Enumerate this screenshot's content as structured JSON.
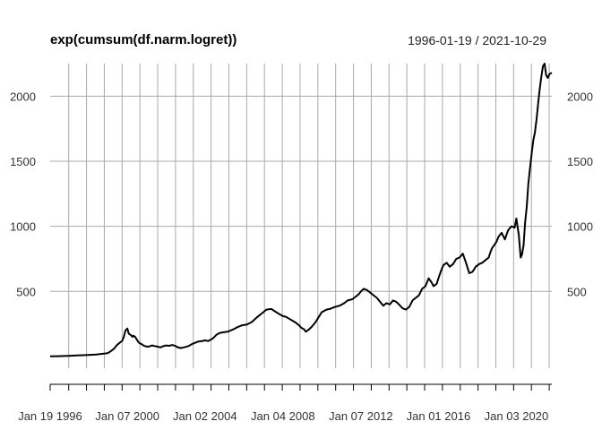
{
  "chart_data": {
    "type": "line",
    "title": "exp(cumsum(df.narm.logret))",
    "date_range_label": "1996-01-19 / 2021-10-29",
    "xlabel": "",
    "ylabel": "",
    "x_start": "1996-01-19",
    "x_end": "2021-10-29",
    "xlim": [
      "1996-01-19",
      "2021-10-29"
    ],
    "ylim": [
      -90,
      2250
    ],
    "y_ticks": [
      500,
      1000,
      1500,
      2000
    ],
    "x_tick_labels": [
      {
        "date": "1996-01-19",
        "label": "Jan 19 1996"
      },
      {
        "date": "2000-01-07",
        "label": "Jan 07 2000"
      },
      {
        "date": "2004-01-02",
        "label": "Jan 02 2004"
      },
      {
        "date": "2008-01-04",
        "label": "Jan 04 2008"
      },
      {
        "date": "2012-01-07",
        "label": "Jan 07 2012"
      },
      {
        "date": "2016-01-01",
        "label": "Jan 01 2016"
      },
      {
        "date": "2020-01-03",
        "label": "Jan 03 2020"
      }
    ],
    "grid": true,
    "line_color": "#000000",
    "grid_color": "#a9a9a9",
    "series": [
      {
        "x": [
          "1996-01-19",
          "1996-06-01",
          "1997-01-01",
          "1997-06-01",
          "1998-01-01",
          "1998-06-01",
          "1999-01-01",
          "1999-03-01",
          "1999-05-01",
          "1999-07-01",
          "1999-09-01",
          "1999-10-01",
          "1999-11-01",
          "1999-12-01",
          "2000-01-07",
          "2000-02-01",
          "2000-03-10",
          "2000-04-15",
          "2000-05-01",
          "2000-06-01",
          "2000-07-01",
          "2000-08-01",
          "2000-09-01",
          "2000-10-01",
          "2000-11-01",
          "2000-12-01",
          "2001-01-15",
          "2001-03-01",
          "2001-04-15",
          "2001-06-01",
          "2001-08-01",
          "2001-09-21",
          "2001-11-01",
          "2002-01-01",
          "2002-03-01",
          "2002-05-01",
          "2002-07-01",
          "2002-08-01",
          "2002-10-01",
          "2002-12-01",
          "2003-03-01",
          "2003-05-01",
          "2003-07-01",
          "2003-09-01",
          "2003-12-01",
          "2004-01-02",
          "2004-03-01",
          "2004-06-01",
          "2004-08-01",
          "2004-10-01",
          "2004-12-01",
          "2005-03-01",
          "2005-06-01",
          "2005-09-01",
          "2005-12-01",
          "2006-03-01",
          "2006-06-01",
          "2006-09-01",
          "2006-12-01",
          "2007-03-01",
          "2007-06-01",
          "2007-09-01",
          "2007-11-01",
          "2008-01-04",
          "2008-03-01",
          "2008-05-01",
          "2008-07-01",
          "2008-09-01",
          "2008-11-01",
          "2008-12-15",
          "2009-02-01",
          "2009-03-09",
          "2009-05-01",
          "2009-07-01",
          "2009-09-01",
          "2009-11-01",
          "2010-01-01",
          "2010-04-01",
          "2010-06-01",
          "2010-09-01",
          "2010-12-01",
          "2011-03-01",
          "2011-05-01",
          "2011-08-01",
          "2011-10-01",
          "2011-12-01",
          "2012-01-07",
          "2012-03-01",
          "2012-05-01",
          "2012-07-01",
          "2012-09-01",
          "2012-11-01",
          "2013-01-01",
          "2013-03-01",
          "2013-05-01",
          "2013-07-01",
          "2013-09-01",
          "2013-11-01",
          "2014-01-01",
          "2014-03-01",
          "2014-05-01",
          "2014-07-01",
          "2014-09-01",
          "2014-11-01",
          "2015-01-01",
          "2015-03-01",
          "2015-05-01",
          "2015-07-01",
          "2015-08-24",
          "2015-10-01",
          "2015-12-01",
          "2016-01-01",
          "2016-02-11",
          "2016-04-01",
          "2016-06-01",
          "2016-08-01",
          "2016-10-01",
          "2016-12-01",
          "2017-02-01",
          "2017-04-01",
          "2017-06-01",
          "2017-08-01",
          "2017-10-01",
          "2017-12-01",
          "2018-02-01",
          "2018-04-01",
          "2018-06-01",
          "2018-08-01",
          "2018-09-01",
          "2018-10-01",
          "2018-12-24",
          "2019-02-01",
          "2019-04-01",
          "2019-06-01",
          "2019-08-01",
          "2019-10-01",
          "2019-12-01",
          "2020-01-03",
          "2020-02-19",
          "2020-03-23",
          "2020-04-15",
          "2020-05-15",
          "2020-06-15",
          "2020-07-15",
          "2020-08-15",
          "2020-09-15",
          "2020-10-15",
          "2020-11-15",
          "2020-12-15",
          "2021-01-15",
          "2021-02-15",
          "2021-03-15",
          "2021-04-15",
          "2021-05-15",
          "2021-06-15",
          "2021-07-15",
          "2021-08-15",
          "2021-09-15",
          "2021-10-29"
        ],
        "y": [
          1,
          2,
          5,
          8,
          12,
          15,
          25,
          40,
          60,
          90,
          110,
          120,
          150,
          200,
          215,
          175,
          165,
          150,
          160,
          150,
          130,
          110,
          100,
          95,
          85,
          80,
          75,
          78,
          85,
          80,
          75,
          70,
          78,
          85,
          82,
          88,
          80,
          72,
          65,
          70,
          80,
          95,
          105,
          115,
          120,
          125,
          118,
          140,
          165,
          180,
          185,
          190,
          205,
          225,
          240,
          245,
          265,
          300,
          330,
          360,
          365,
          340,
          325,
          310,
          305,
          290,
          275,
          260,
          240,
          220,
          210,
          190,
          205,
          230,
          260,
          300,
          340,
          360,
          365,
          380,
          390,
          410,
          430,
          440,
          460,
          480,
          500,
          520,
          510,
          490,
          470,
          450,
          420,
          390,
          410,
          400,
          430,
          420,
          395,
          370,
          360,
          380,
          430,
          450,
          470,
          520,
          540,
          600,
          570,
          540,
          560,
          600,
          650,
          700,
          720,
          690,
          710,
          750,
          760,
          790,
          720,
          640,
          650,
          690,
          710,
          720,
          740,
          760,
          800,
          830,
          880,
          920,
          950,
          900,
          970,
          1000,
          990,
          1060,
          930,
          760,
          780,
          850,
          1030,
          1150,
          1330,
          1450,
          1560,
          1660,
          1720,
          1820,
          1950,
          2050,
          2150,
          2230,
          2250,
          2160,
          2140,
          2170,
          2180
        ]
      }
    ]
  }
}
